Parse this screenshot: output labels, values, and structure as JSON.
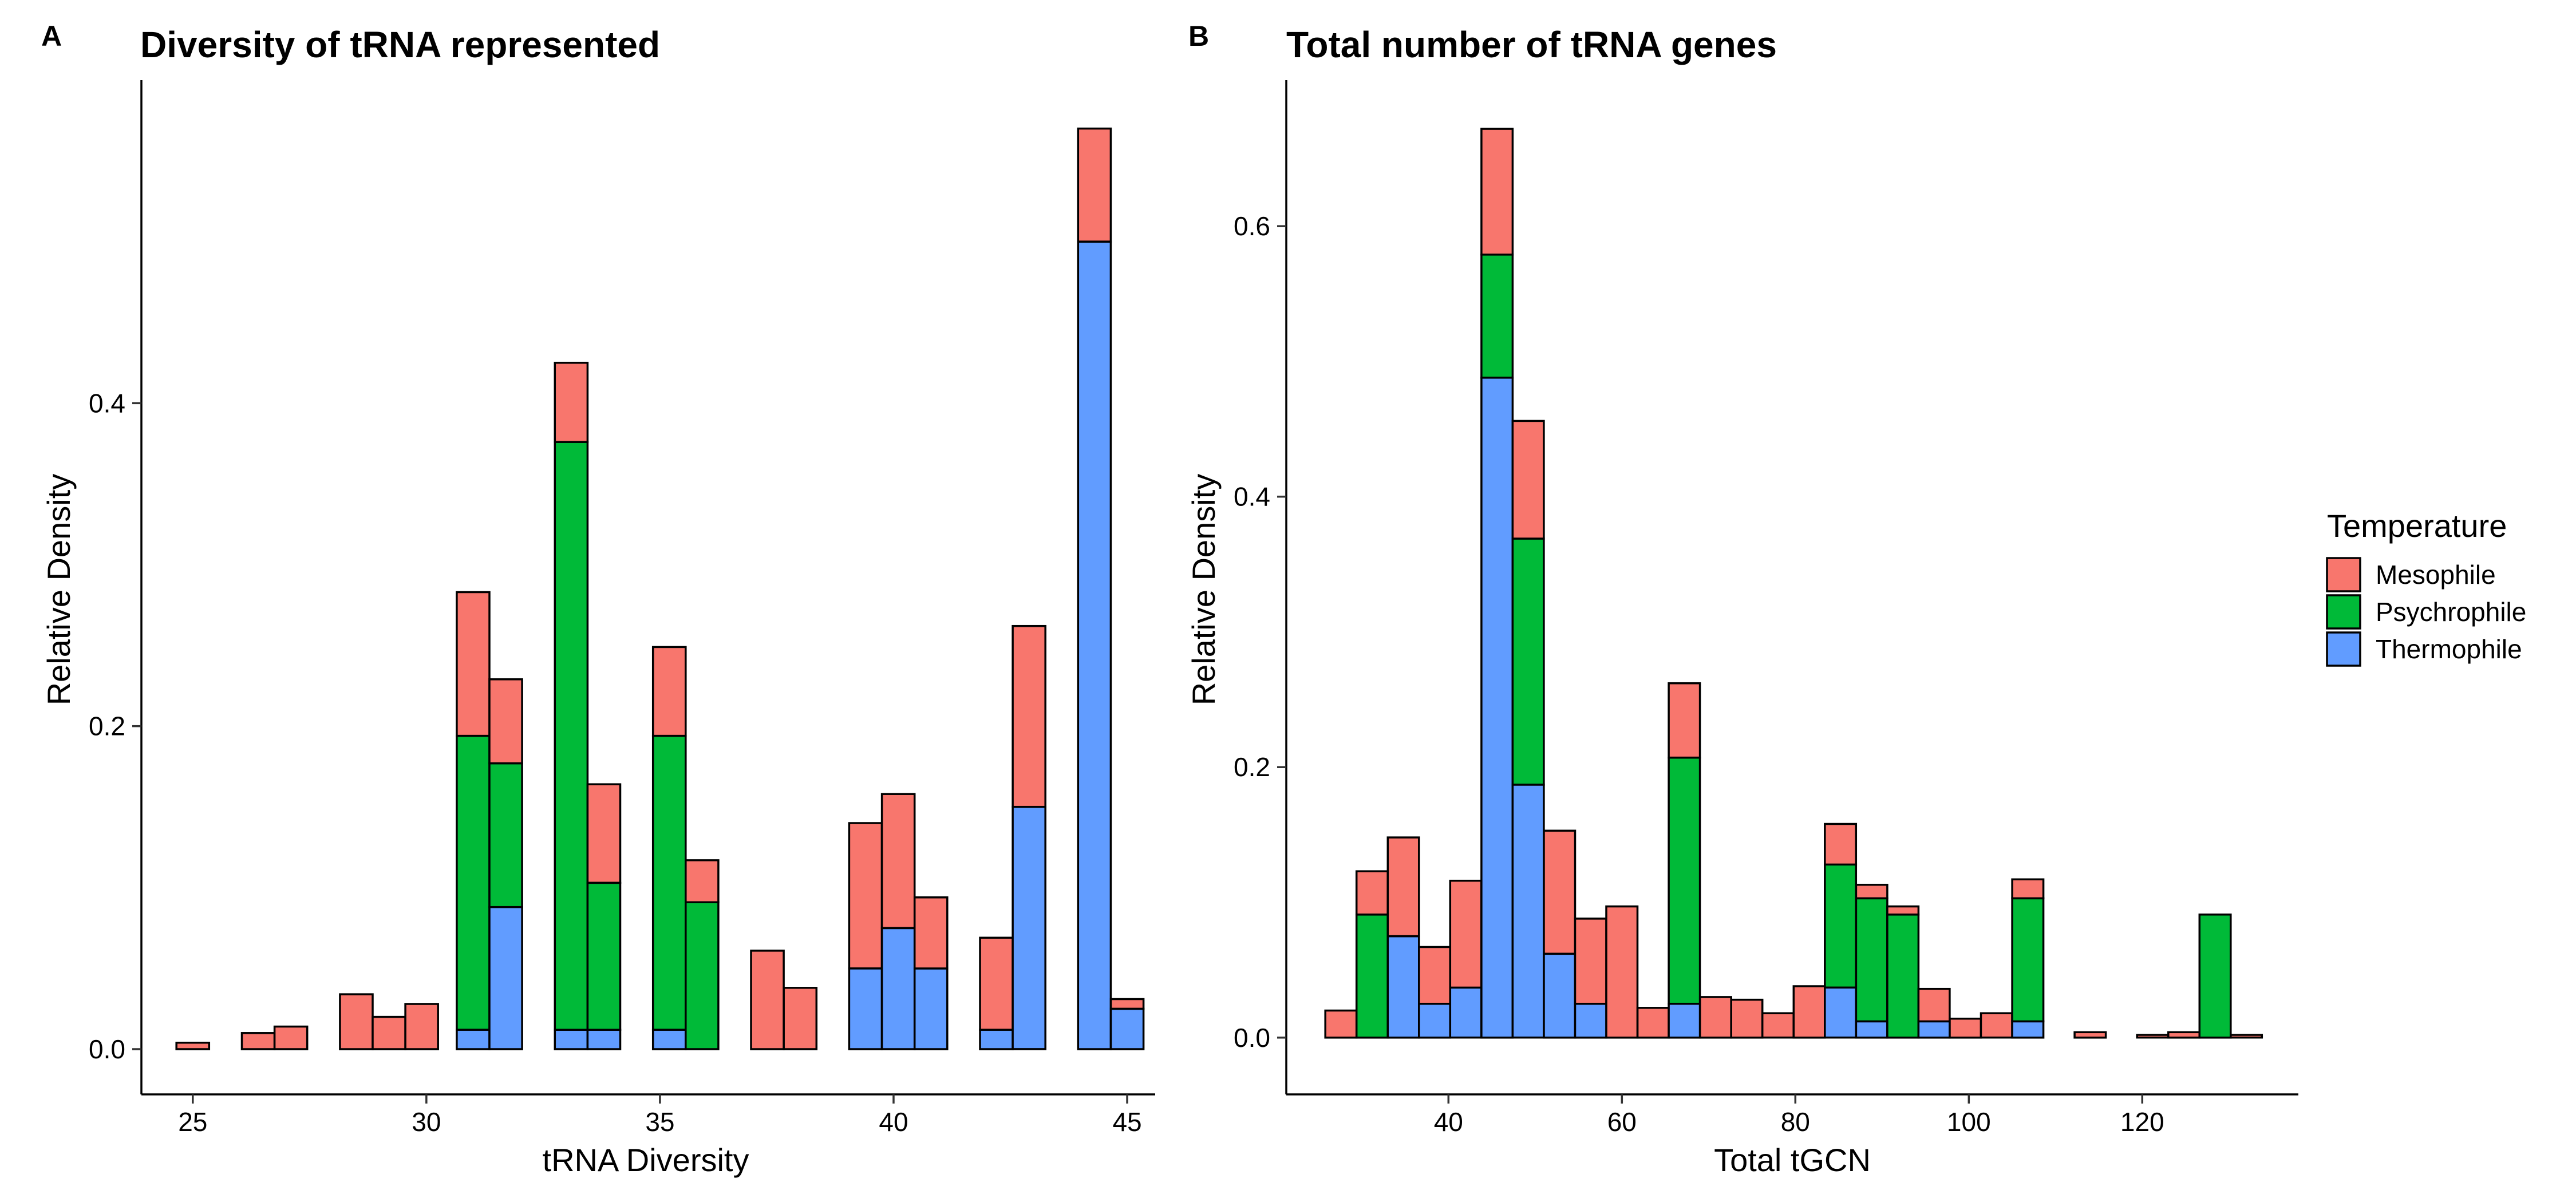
{
  "colors": {
    "Mesophile": "#F8766D",
    "Psychrophile": "#00BA38",
    "Thermophile": "#619CFF"
  },
  "legend": {
    "title": "Temperature",
    "entries": [
      "Mesophile",
      "Psychrophile",
      "Thermophile"
    ]
  },
  "chart_data": [
    {
      "panel": "A",
      "type": "bar",
      "stacked": true,
      "title": "Diversity of tRNA represented",
      "xlabel": "tRNA Diversity",
      "ylabel": "Relative Density",
      "xlim": [
        23.9,
        45.6
      ],
      "ylim": [
        -0.028,
        0.6
      ],
      "xticks": [
        25,
        30,
        35,
        40,
        45
      ],
      "yticks": [
        0.0,
        0.2,
        0.4
      ],
      "ytick_labels": [
        "0.0",
        "0.2",
        "0.4"
      ],
      "bin_width": 0.7,
      "stack_order": [
        "Thermophile",
        "Psychrophile",
        "Mesophile"
      ],
      "bins": [
        {
          "x": 25.0,
          "Thermophile": 0,
          "Psychrophile": 0,
          "Mesophile": 0.004
        },
        {
          "x": 26.4,
          "Thermophile": 0,
          "Psychrophile": 0,
          "Mesophile": 0.01
        },
        {
          "x": 27.1,
          "Thermophile": 0,
          "Psychrophile": 0,
          "Mesophile": 0.014
        },
        {
          "x": 28.5,
          "Thermophile": 0,
          "Psychrophile": 0,
          "Mesophile": 0.034
        },
        {
          "x": 29.2,
          "Thermophile": 0,
          "Psychrophile": 0,
          "Mesophile": 0.02
        },
        {
          "x": 29.9,
          "Thermophile": 0,
          "Psychrophile": 0,
          "Mesophile": 0.028
        },
        {
          "x": 31.0,
          "Thermophile": 0.012,
          "Psychrophile": 0.182,
          "Mesophile": 0.089
        },
        {
          "x": 31.7,
          "Thermophile": 0.088,
          "Psychrophile": 0.089,
          "Mesophile": 0.052
        },
        {
          "x": 33.1,
          "Thermophile": 0.012,
          "Psychrophile": 0.364,
          "Mesophile": 0.049
        },
        {
          "x": 33.8,
          "Thermophile": 0.012,
          "Psychrophile": 0.091,
          "Mesophile": 0.061
        },
        {
          "x": 35.2,
          "Thermophile": 0.012,
          "Psychrophile": 0.182,
          "Mesophile": 0.055
        },
        {
          "x": 35.9,
          "Thermophile": 0,
          "Psychrophile": 0.091,
          "Mesophile": 0.026
        },
        {
          "x": 37.3,
          "Thermophile": 0,
          "Psychrophile": 0,
          "Mesophile": 0.061
        },
        {
          "x": 38.0,
          "Thermophile": 0,
          "Psychrophile": 0,
          "Mesophile": 0.038
        },
        {
          "x": 39.4,
          "Thermophile": 0.05,
          "Psychrophile": 0,
          "Mesophile": 0.09
        },
        {
          "x": 40.1,
          "Thermophile": 0.075,
          "Psychrophile": 0,
          "Mesophile": 0.083
        },
        {
          "x": 40.8,
          "Thermophile": 0.05,
          "Psychrophile": 0,
          "Mesophile": 0.044
        },
        {
          "x": 42.2,
          "Thermophile": 0.012,
          "Psychrophile": 0,
          "Mesophile": 0.057
        },
        {
          "x": 42.9,
          "Thermophile": 0.15,
          "Psychrophile": 0,
          "Mesophile": 0.112
        },
        {
          "x": 44.3,
          "Thermophile": 0.5,
          "Psychrophile": 0,
          "Mesophile": 0.07
        },
        {
          "x": 45.0,
          "Thermophile": 0.025,
          "Psychrophile": 0,
          "Mesophile": 0.006
        }
      ]
    },
    {
      "panel": "B",
      "type": "bar",
      "stacked": true,
      "title": "Total number of tRNA genes",
      "xlabel": "Total tGCN",
      "ylabel": "Relative Density",
      "xlim": [
        21.3,
        138.0
      ],
      "ylim": [
        -0.042,
        0.708
      ],
      "xticks": [
        40,
        60,
        80,
        100,
        120
      ],
      "yticks": [
        0.0,
        0.2,
        0.4,
        0.6
      ],
      "ytick_labels": [
        "0.0",
        "0.2",
        "0.4",
        "0.6"
      ],
      "bin_width": 3.6,
      "stack_order": [
        "Thermophile",
        "Psychrophile",
        "Mesophile"
      ],
      "bins": [
        {
          "x": 27.6,
          "Thermophile": 0,
          "Psychrophile": 0,
          "Mesophile": 0.02
        },
        {
          "x": 31.2,
          "Thermophile": 0,
          "Psychrophile": 0.091,
          "Mesophile": 0.032
        },
        {
          "x": 34.8,
          "Thermophile": 0.075,
          "Psychrophile": 0,
          "Mesophile": 0.073
        },
        {
          "x": 38.4,
          "Thermophile": 0.025,
          "Psychrophile": 0,
          "Mesophile": 0.042
        },
        {
          "x": 42.0,
          "Thermophile": 0.037,
          "Psychrophile": 0,
          "Mesophile": 0.079
        },
        {
          "x": 45.6,
          "Thermophile": 0.488,
          "Psychrophile": 0.091,
          "Mesophile": 0.093
        },
        {
          "x": 49.2,
          "Thermophile": 0.187,
          "Psychrophile": 0.182,
          "Mesophile": 0.087
        },
        {
          "x": 52.8,
          "Thermophile": 0.062,
          "Psychrophile": 0,
          "Mesophile": 0.091
        },
        {
          "x": 56.4,
          "Thermophile": 0.025,
          "Psychrophile": 0,
          "Mesophile": 0.063
        },
        {
          "x": 60.0,
          "Thermophile": 0,
          "Psychrophile": 0,
          "Mesophile": 0.097
        },
        {
          "x": 63.6,
          "Thermophile": 0,
          "Psychrophile": 0,
          "Mesophile": 0.022
        },
        {
          "x": 67.2,
          "Thermophile": 0.025,
          "Psychrophile": 0.182,
          "Mesophile": 0.055
        },
        {
          "x": 70.8,
          "Thermophile": 0,
          "Psychrophile": 0,
          "Mesophile": 0.03
        },
        {
          "x": 74.4,
          "Thermophile": 0,
          "Psychrophile": 0,
          "Mesophile": 0.028
        },
        {
          "x": 78.0,
          "Thermophile": 0,
          "Psychrophile": 0,
          "Mesophile": 0.018
        },
        {
          "x": 81.6,
          "Thermophile": 0,
          "Psychrophile": 0,
          "Mesophile": 0.038
        },
        {
          "x": 85.2,
          "Thermophile": 0.037,
          "Psychrophile": 0.091,
          "Mesophile": 0.03
        },
        {
          "x": 88.8,
          "Thermophile": 0.012,
          "Psychrophile": 0.091,
          "Mesophile": 0.01
        },
        {
          "x": 92.4,
          "Thermophile": 0,
          "Psychrophile": 0.091,
          "Mesophile": 0.006
        },
        {
          "x": 96.0,
          "Thermophile": 0.012,
          "Psychrophile": 0,
          "Mesophile": 0.024
        },
        {
          "x": 99.6,
          "Thermophile": 0,
          "Psychrophile": 0,
          "Mesophile": 0.014
        },
        {
          "x": 103.2,
          "Thermophile": 0,
          "Psychrophile": 0,
          "Mesophile": 0.018
        },
        {
          "x": 106.8,
          "Thermophile": 0.012,
          "Psychrophile": 0.091,
          "Mesophile": 0.014
        },
        {
          "x": 114.0,
          "Thermophile": 0,
          "Psychrophile": 0,
          "Mesophile": 0.004
        },
        {
          "x": 121.2,
          "Thermophile": 0,
          "Psychrophile": 0,
          "Mesophile": 0.002
        },
        {
          "x": 124.8,
          "Thermophile": 0,
          "Psychrophile": 0,
          "Mesophile": 0.004
        },
        {
          "x": 128.4,
          "Thermophile": 0,
          "Psychrophile": 0.091,
          "Mesophile": 0
        },
        {
          "x": 132.0,
          "Thermophile": 0,
          "Psychrophile": 0,
          "Mesophile": 0.002
        }
      ]
    }
  ]
}
